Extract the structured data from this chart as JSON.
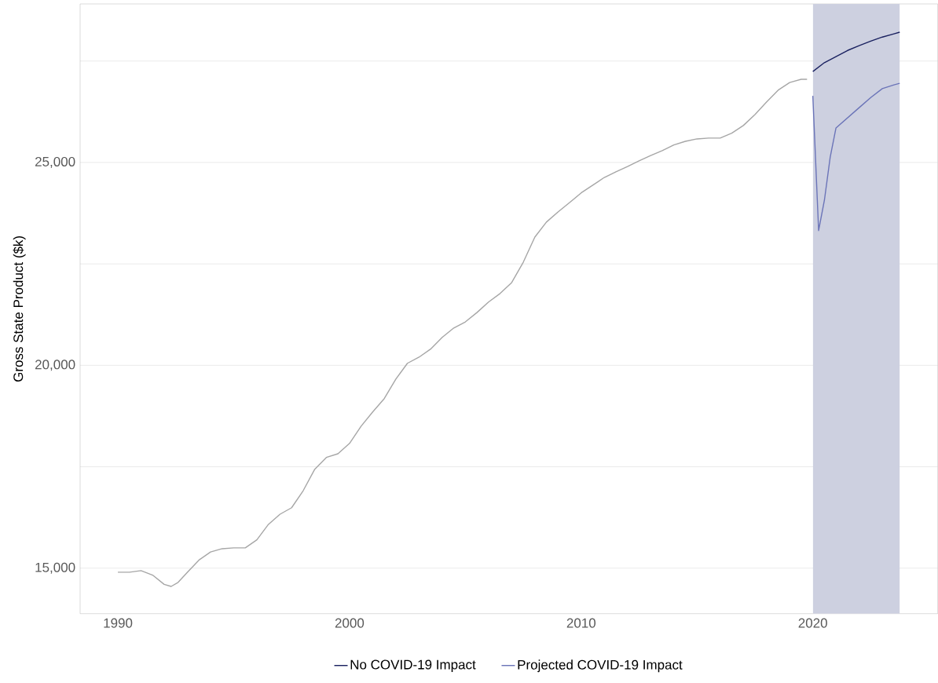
{
  "chart_data": {
    "type": "line",
    "ylabel": "Gross State Product ($k)",
    "xlim": [
      1988.37,
      2025.39
    ],
    "ylim": [
      13878,
      28907
    ],
    "xticks": [
      1990,
      2000,
      2010,
      2020
    ],
    "yticks": [
      {
        "value": 15000,
        "label": "15,000"
      },
      {
        "value": 17500,
        "label": null
      },
      {
        "value": 20000,
        "label": "20,000"
      },
      {
        "value": 22500,
        "label": null
      },
      {
        "value": 25000,
        "label": "25,000"
      },
      {
        "value": 27500,
        "label": null
      }
    ],
    "grid": "y",
    "legend": "bottom",
    "line_style": "solid",
    "marker": "none",
    "bands": [
      {
        "axis": "x",
        "from": 2020,
        "to": 2023.75,
        "color": "#cdd0e0"
      }
    ],
    "series": [
      {
        "color": "#a6a6a6",
        "x": [
          1990,
          1990.5,
          1991,
          1991.5,
          1992,
          1992.3,
          1992.6,
          1993,
          1993.5,
          1994,
          1994.5,
          1995,
          1995.5,
          1996,
          1996.5,
          1997,
          1997.5,
          1998,
          1998.5,
          1999,
          1999.5,
          2000,
          2000.5,
          2001,
          2001.5,
          2002,
          2002.5,
          2003,
          2003.5,
          2004,
          2004.5,
          2005,
          2005.5,
          2006,
          2006.5,
          2007,
          2007.5,
          2008,
          2008.5,
          2009,
          2009.5,
          2010,
          2010.5,
          2011,
          2011.5,
          2012,
          2012.5,
          2013,
          2013.5,
          2014,
          2014.5,
          2015,
          2015.5,
          2016,
          2016.5,
          2017,
          2017.5,
          2018,
          2018.5,
          2019,
          2019.5,
          2019.75
        ],
        "values": [
          14900,
          14900,
          14940,
          14830,
          14600,
          14550,
          14650,
          14900,
          15200,
          15400,
          15480,
          15500,
          15500,
          15700,
          16080,
          16330,
          16490,
          16910,
          17440,
          17730,
          17820,
          18075,
          18500,
          18850,
          19180,
          19660,
          20050,
          20200,
          20400,
          20690,
          20920,
          21070,
          21300,
          21560,
          21770,
          22040,
          22540,
          23160,
          23530,
          23780,
          24010,
          24250,
          24440,
          24630,
          24770,
          24900,
          25040,
          25170,
          25290,
          25430,
          25520,
          25580,
          25600,
          25600,
          25720,
          25910,
          26180,
          26490,
          26780,
          26970,
          27050,
          27050
        ]
      },
      {
        "name": "No COVID-19 Impact",
        "color": "#1a2160",
        "x": [
          2020,
          2020.5,
          2021,
          2021.5,
          2022,
          2022.5,
          2023,
          2023.5,
          2023.75
        ],
        "values": [
          27240,
          27460,
          27610,
          27760,
          27880,
          27990,
          28090,
          28170,
          28210
        ]
      },
      {
        "name": "Projected COVID-19 Impact",
        "color": "#6b74b8",
        "x": [
          2020,
          2020.25,
          2020.5,
          2020.75,
          2021,
          2021.5,
          2022,
          2022.5,
          2023,
          2023.5,
          2023.75
        ],
        "values": [
          26640,
          23320,
          24070,
          25130,
          25850,
          26100,
          26350,
          26600,
          26820,
          26910,
          26950
        ]
      }
    ]
  }
}
